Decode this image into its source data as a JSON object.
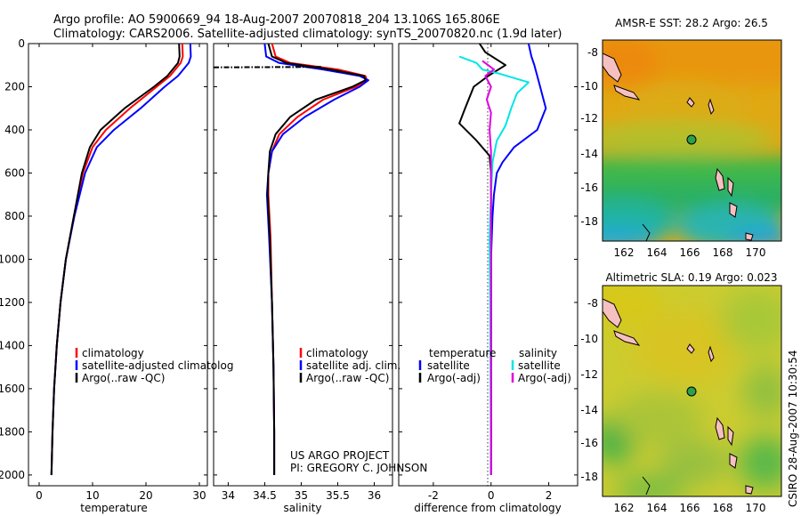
{
  "header": {
    "line1": "Argo profile: AO 5900669_94 18-Aug-2007 20070818_204 13.106S 165.806E",
    "line2": "Climatology: CARS2006. Satellite-adjusted climatology: synTS_20070820.nc (1.9d later)"
  },
  "colors": {
    "climatology": "#ff0000",
    "satellite": "#0000ff",
    "argo": "#000000",
    "salinity_satellite": "#00e5e5",
    "salinity_argo": "#e000e0"
  },
  "chart_data": [
    {
      "type": "line",
      "id": "temperature",
      "xlabel": "temperature",
      "ylabel": "",
      "xlim": [
        -2,
        31.5
      ],
      "ylim": [
        0,
        2050
      ],
      "y_reversed": true,
      "xticks": [
        0,
        10,
        20,
        30
      ],
      "yticks": [
        0,
        200,
        400,
        600,
        800,
        1000,
        1200,
        1400,
        1600,
        1800,
        2000
      ],
      "legend": [
        "climatology",
        "satellite-adjusted climatolog",
        "Argo(..raw -QC)"
      ],
      "series": [
        {
          "name": "climatology",
          "color": "#ff0000",
          "points": [
            [
              26.8,
              0
            ],
            [
              26.9,
              60
            ],
            [
              26.5,
              90
            ],
            [
              24.5,
              150
            ],
            [
              22,
              200
            ],
            [
              17,
              300
            ],
            [
              12.5,
              400
            ],
            [
              10,
              480
            ],
            [
              8.2,
              600
            ],
            [
              6.5,
              800
            ],
            [
              5,
              1000
            ],
            [
              4,
              1200
            ],
            [
              3.3,
              1400
            ],
            [
              2.8,
              1600
            ],
            [
              2.5,
              1800
            ],
            [
              2.3,
              2000
            ]
          ]
        },
        {
          "name": "satellite-adjusted climatology",
          "color": "#0000ff",
          "points": [
            [
              28.3,
              0
            ],
            [
              28.4,
              60
            ],
            [
              28,
              90
            ],
            [
              26,
              150
            ],
            [
              23.5,
              200
            ],
            [
              19,
              300
            ],
            [
              14,
              400
            ],
            [
              10.8,
              480
            ],
            [
              8.6,
              600
            ],
            [
              6.6,
              800
            ],
            [
              5,
              1000
            ],
            [
              4,
              1200
            ],
            [
              3.3,
              1400
            ],
            [
              2.8,
              1600
            ],
            [
              2.5,
              1800
            ],
            [
              2.3,
              2000
            ]
          ]
        },
        {
          "name": "Argo(..raw -QC)",
          "color": "#000000",
          "points": [
            [
              26.2,
              0
            ],
            [
              26.3,
              60
            ],
            [
              26,
              90
            ],
            [
              24,
              150
            ],
            [
              21.5,
              200
            ],
            [
              16,
              300
            ],
            [
              11.5,
              400
            ],
            [
              9.5,
              480
            ],
            [
              8,
              600
            ],
            [
              6.5,
              800
            ],
            [
              5,
              1000
            ],
            [
              4,
              1200
            ],
            [
              3.3,
              1400
            ],
            [
              2.8,
              1600
            ],
            [
              2.5,
              1800
            ],
            [
              2.3,
              2000
            ]
          ]
        }
      ]
    },
    {
      "type": "line",
      "id": "salinity",
      "xlabel": "salinity",
      "ylabel": "",
      "xlim": [
        33.8,
        36.25
      ],
      "ylim": [
        0,
        2050
      ],
      "y_reversed": true,
      "xticks": [
        34,
        34.5,
        35,
        35.5,
        36
      ],
      "legend": [
        "climatology",
        "satellite adj. clim.",
        "Argo(..raw -QC)"
      ],
      "series": [
        {
          "name": "climatology",
          "color": "#ff0000",
          "points": [
            [
              34.6,
              0
            ],
            [
              34.65,
              60
            ],
            [
              34.85,
              90
            ],
            [
              35.5,
              120
            ],
            [
              35.88,
              150
            ],
            [
              35.9,
              170
            ],
            [
              35.75,
              200
            ],
            [
              35.3,
              260
            ],
            [
              34.95,
              340
            ],
            [
              34.7,
              420
            ],
            [
              34.6,
              500
            ],
            [
              34.55,
              600
            ],
            [
              34.55,
              700
            ],
            [
              34.58,
              900
            ],
            [
              34.6,
              1200
            ],
            [
              34.62,
              1500
            ],
            [
              34.63,
              1800
            ],
            [
              34.63,
              2000
            ]
          ]
        },
        {
          "name": "satellite adj. clim.",
          "color": "#0000ff",
          "points": [
            [
              34.5,
              0
            ],
            [
              34.52,
              60
            ],
            [
              34.7,
              90
            ],
            [
              35.3,
              120
            ],
            [
              35.8,
              150
            ],
            [
              35.92,
              170
            ],
            [
              35.8,
              200
            ],
            [
              35.45,
              260
            ],
            [
              35.05,
              340
            ],
            [
              34.75,
              420
            ],
            [
              34.6,
              500
            ],
            [
              34.55,
              600
            ],
            [
              34.53,
              700
            ],
            [
              34.56,
              900
            ],
            [
              34.6,
              1200
            ],
            [
              34.62,
              1500
            ],
            [
              34.63,
              1800
            ],
            [
              34.63,
              2000
            ]
          ]
        },
        {
          "name": "Argo(..raw -QC)",
          "color": "#000000",
          "points": [
            [
              34.55,
              0
            ],
            [
              34.6,
              60
            ],
            [
              34.8,
              90
            ],
            [
              35.4,
              120
            ],
            [
              35.86,
              150
            ],
            [
              35.88,
              170
            ],
            [
              35.7,
              200
            ],
            [
              35.2,
              260
            ],
            [
              34.85,
              340
            ],
            [
              34.65,
              420
            ],
            [
              34.57,
              500
            ],
            [
              34.55,
              600
            ],
            [
              34.54,
              700
            ],
            [
              34.57,
              900
            ],
            [
              34.6,
              1200
            ],
            [
              34.62,
              1500
            ],
            [
              34.63,
              1800
            ],
            [
              34.63,
              2000
            ]
          ]
        },
        {
          "name": "Argo dash segment",
          "color": "#000000",
          "dashed": true,
          "points": [
            [
              33.8,
              110
            ],
            [
              35.3,
              108
            ]
          ]
        }
      ]
    },
    {
      "type": "line",
      "id": "difference",
      "xlabel": "difference from climatology",
      "ylabel": "",
      "xlim": [
        -3.2,
        3.0
      ],
      "ylim": [
        0,
        2050
      ],
      "y_reversed": true,
      "xticks": [
        -2,
        0,
        2
      ],
      "legend_left": [
        "temperature",
        "satellite",
        "Argo(-adj)"
      ],
      "legend_right": [
        "salinity",
        "satellite",
        "Argo(-adj)"
      ],
      "series": [
        {
          "name": "temperature satellite",
          "color": "#0000ff",
          "points": [
            [
              1.3,
              0
            ],
            [
              1.4,
              60
            ],
            [
              1.5,
              100
            ],
            [
              1.7,
              200
            ],
            [
              1.9,
              300
            ],
            [
              1.6,
              400
            ],
            [
              0.8,
              480
            ],
            [
              0.4,
              550
            ],
            [
              0.2,
              600
            ],
            [
              0.1,
              700
            ],
            [
              0.05,
              800
            ],
            [
              0,
              1000
            ],
            [
              0,
              2000
            ]
          ]
        },
        {
          "name": "temperature Argo(-adj)",
          "color": "#000000",
          "points": [
            [
              -0.4,
              0
            ],
            [
              -0.2,
              40
            ],
            [
              0.5,
              100
            ],
            [
              -0.1,
              150
            ],
            [
              -0.6,
              200
            ],
            [
              -0.9,
              300
            ],
            [
              -1.1,
              370
            ],
            [
              -0.5,
              450
            ],
            [
              -0.05,
              520
            ],
            [
              0,
              600
            ],
            [
              0,
              2000
            ]
          ]
        },
        {
          "name": "salinity satellite",
          "color": "#00e5e5",
          "points": [
            [
              -1.1,
              60
            ],
            [
              -0.5,
              90
            ],
            [
              -0.3,
              120
            ],
            [
              0.3,
              140
            ],
            [
              1.3,
              180
            ],
            [
              0.9,
              230
            ],
            [
              0.7,
              300
            ],
            [
              0.5,
              380
            ],
            [
              0.2,
              450
            ],
            [
              0.05,
              550
            ],
            [
              0,
              700
            ],
            [
              -0.05,
              900
            ],
            [
              -0.03,
              1200
            ],
            [
              0,
              2000
            ]
          ]
        },
        {
          "name": "salinity Argo(-adj)",
          "color": "#e000e0",
          "points": [
            [
              -0.3,
              80
            ],
            [
              0.1,
              120
            ],
            [
              -0.2,
              150
            ],
            [
              0,
              200
            ],
            [
              -0.15,
              260
            ],
            [
              0,
              320
            ],
            [
              -0.05,
              400
            ],
            [
              0,
              500
            ],
            [
              0,
              2000
            ]
          ]
        }
      ]
    }
  ],
  "maps": {
    "sst": {
      "title": "AMSR-E SST: 28.2 Argo: 26.5",
      "xticks": [
        "162",
        "164",
        "166",
        "168",
        "170"
      ],
      "yticks": [
        "-8",
        "-10",
        "-12",
        "-14",
        "-16",
        "-18"
      ],
      "float_position": [
        165.806,
        -13.106
      ]
    },
    "sla": {
      "title": "Altimetric SLA: 0.19 Argo: 0.023",
      "xticks": [
        "162",
        "164",
        "166",
        "168",
        "170"
      ],
      "yticks": [
        "-8",
        "-10",
        "-12",
        "-14",
        "-16",
        "-18"
      ],
      "float_position": [
        165.806,
        -13.106
      ]
    }
  },
  "credits": {
    "project": "US ARGO PROJECT",
    "pi": "PI: GREGORY C. JOHNSON",
    "stamp": "CSIRO 28-Aug-2007 10:30:54"
  }
}
